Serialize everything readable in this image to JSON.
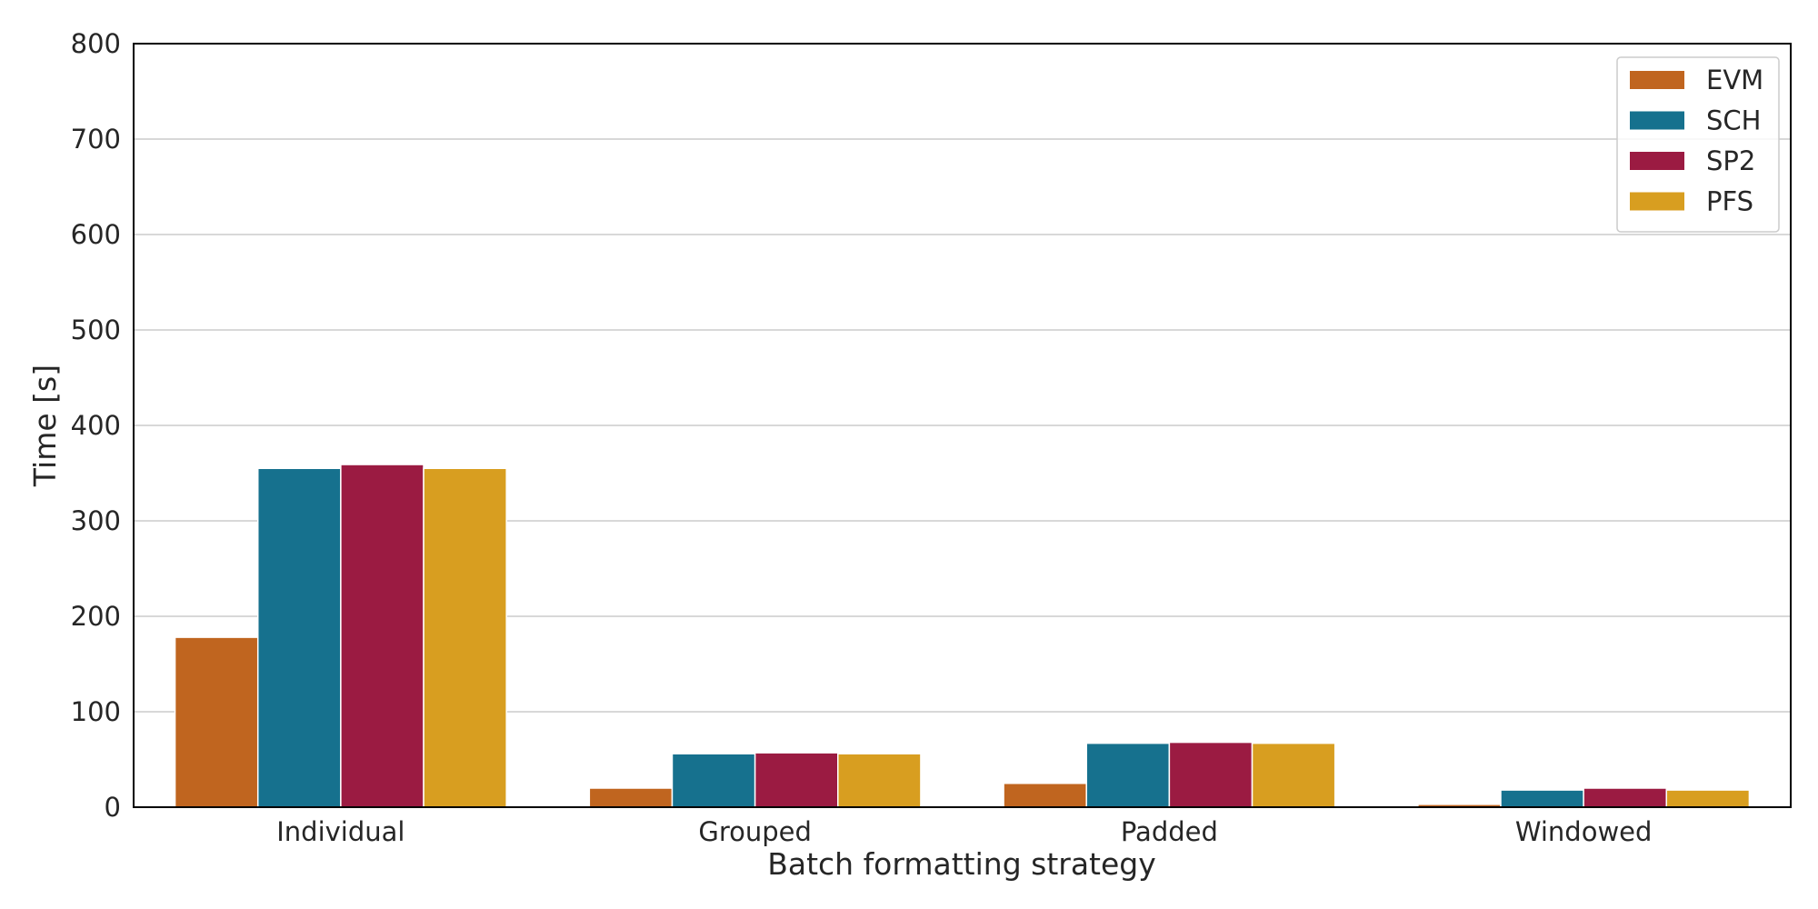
{
  "chart_data": {
    "type": "bar",
    "xlabel": "Batch formatting strategy",
    "ylabel": "Time [s]",
    "ylim": [
      0,
      800
    ],
    "yticks": [
      "0",
      "100",
      "200",
      "300",
      "400",
      "500",
      "600",
      "700",
      "800"
    ],
    "grid": true,
    "legend_position": "top-right",
    "categories": [
      "Individual",
      "Grouped",
      "Padded",
      "Windowed"
    ],
    "series": [
      {
        "name": "EVM",
        "color": "#c0651f",
        "values": [
          178,
          20,
          25,
          3
        ]
      },
      {
        "name": "SCH",
        "color": "#16718e",
        "values": [
          355,
          56,
          67,
          18
        ]
      },
      {
        "name": "SP2",
        "color": "#9b1b42",
        "values": [
          359,
          57,
          68,
          20
        ]
      },
      {
        "name": "PFS",
        "color": "#d89e20",
        "values": [
          355,
          56,
          67,
          18
        ]
      }
    ]
  }
}
